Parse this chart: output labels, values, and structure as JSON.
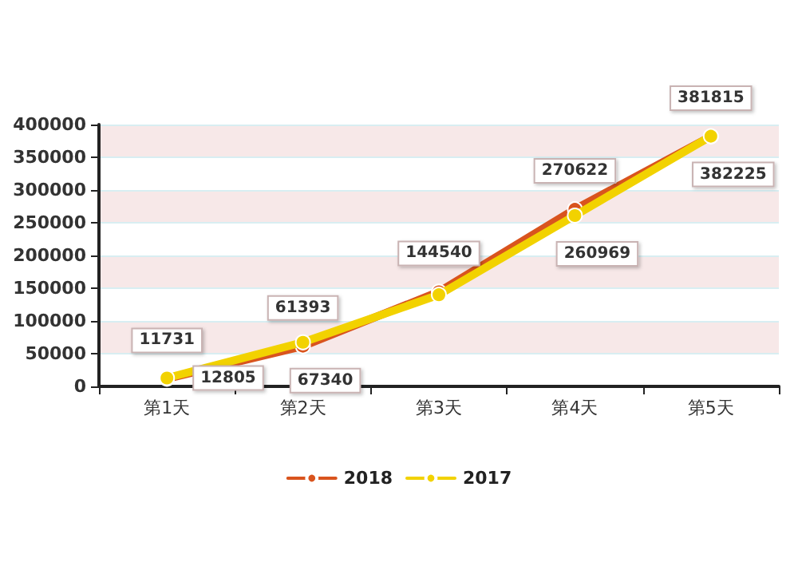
{
  "chart_data": {
    "type": "line",
    "categories": [
      "第1天",
      "第2天",
      "第3天",
      "第4天",
      "第5天"
    ],
    "series": [
      {
        "name": "2018",
        "color": "#d9541e",
        "values": [
          11731,
          61393,
          144540,
          270622,
          381815
        ],
        "value_labels": [
          "11731",
          "61393",
          "144540",
          "270622",
          "381815"
        ]
      },
      {
        "name": "2017",
        "color": "#f2d200",
        "values": [
          12805,
          67340,
          140000,
          260969,
          382225
        ],
        "value_labels": [
          "12805",
          "67340",
          null,
          "260969",
          "382225"
        ]
      }
    ],
    "ylim": [
      0,
      400000
    ],
    "yticks": [
      0,
      50000,
      100000,
      150000,
      200000,
      250000,
      300000,
      350000,
      400000
    ],
    "grid": "y",
    "legend": "bottom",
    "marker": "circle",
    "line_style": "solid"
  }
}
